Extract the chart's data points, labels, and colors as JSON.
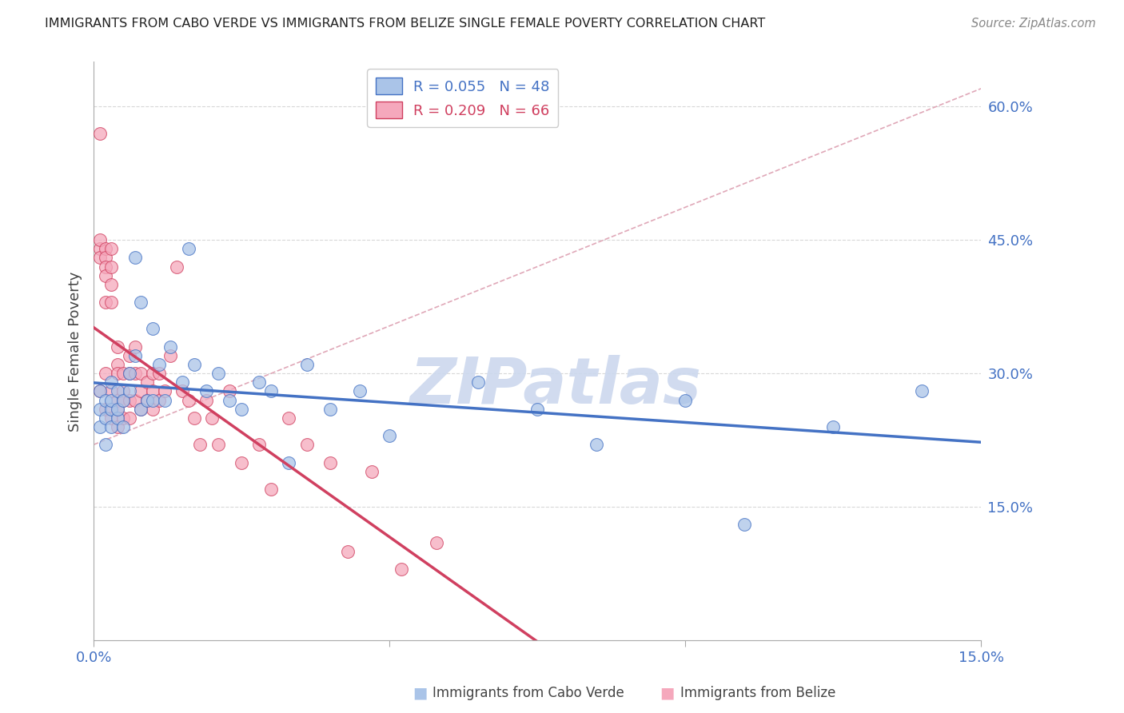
{
  "title": "IMMIGRANTS FROM CABO VERDE VS IMMIGRANTS FROM BELIZE SINGLE FEMALE POVERTY CORRELATION CHART",
  "source": "Source: ZipAtlas.com",
  "ylabel": "Single Female Poverty",
  "xmin": 0.0,
  "xmax": 0.15,
  "ymin": 0.0,
  "ymax": 0.65,
  "cabo_verde_R": 0.055,
  "cabo_verde_N": 48,
  "belize_R": 0.209,
  "belize_N": 66,
  "cabo_verde_color": "#aac4e8",
  "belize_color": "#f5a8bc",
  "cabo_verde_line_color": "#4472c4",
  "belize_line_color": "#d04060",
  "ref_line_color": "#e0a8b8",
  "watermark_color": "#ccd8ee",
  "grid_color": "#d8d8d8",
  "axis_label_color": "#4472c4",
  "cabo_verde_x": [
    0.001,
    0.001,
    0.001,
    0.002,
    0.002,
    0.002,
    0.003,
    0.003,
    0.003,
    0.003,
    0.004,
    0.004,
    0.004,
    0.005,
    0.005,
    0.006,
    0.006,
    0.007,
    0.007,
    0.008,
    0.008,
    0.009,
    0.01,
    0.01,
    0.011,
    0.012,
    0.013,
    0.015,
    0.016,
    0.017,
    0.019,
    0.021,
    0.023,
    0.025,
    0.028,
    0.03,
    0.033,
    0.036,
    0.04,
    0.045,
    0.05,
    0.065,
    0.075,
    0.085,
    0.1,
    0.11,
    0.125,
    0.14
  ],
  "cabo_verde_y": [
    0.26,
    0.24,
    0.28,
    0.25,
    0.27,
    0.22,
    0.29,
    0.26,
    0.24,
    0.27,
    0.25,
    0.28,
    0.26,
    0.27,
    0.24,
    0.3,
    0.28,
    0.43,
    0.32,
    0.26,
    0.38,
    0.27,
    0.35,
    0.27,
    0.31,
    0.27,
    0.33,
    0.29,
    0.44,
    0.31,
    0.28,
    0.3,
    0.27,
    0.26,
    0.29,
    0.28,
    0.2,
    0.31,
    0.26,
    0.28,
    0.23,
    0.29,
    0.26,
    0.22,
    0.27,
    0.13,
    0.24,
    0.28
  ],
  "belize_x": [
    0.001,
    0.001,
    0.001,
    0.001,
    0.001,
    0.002,
    0.002,
    0.002,
    0.002,
    0.002,
    0.002,
    0.002,
    0.003,
    0.003,
    0.003,
    0.003,
    0.003,
    0.003,
    0.004,
    0.004,
    0.004,
    0.004,
    0.004,
    0.004,
    0.005,
    0.005,
    0.005,
    0.005,
    0.006,
    0.006,
    0.006,
    0.006,
    0.007,
    0.007,
    0.007,
    0.008,
    0.008,
    0.008,
    0.009,
    0.009,
    0.01,
    0.01,
    0.01,
    0.011,
    0.011,
    0.012,
    0.013,
    0.014,
    0.015,
    0.016,
    0.017,
    0.018,
    0.019,
    0.02,
    0.021,
    0.023,
    0.025,
    0.028,
    0.03,
    0.033,
    0.036,
    0.04,
    0.043,
    0.047,
    0.052,
    0.058
  ],
  "belize_y": [
    0.57,
    0.44,
    0.45,
    0.43,
    0.28,
    0.44,
    0.43,
    0.42,
    0.41,
    0.38,
    0.3,
    0.26,
    0.4,
    0.42,
    0.44,
    0.38,
    0.28,
    0.25,
    0.33,
    0.31,
    0.3,
    0.27,
    0.26,
    0.24,
    0.3,
    0.28,
    0.27,
    0.25,
    0.32,
    0.3,
    0.27,
    0.25,
    0.33,
    0.3,
    0.27,
    0.3,
    0.28,
    0.26,
    0.29,
    0.27,
    0.3,
    0.28,
    0.26,
    0.3,
    0.27,
    0.28,
    0.32,
    0.42,
    0.28,
    0.27,
    0.25,
    0.22,
    0.27,
    0.25,
    0.22,
    0.28,
    0.2,
    0.22,
    0.17,
    0.25,
    0.22,
    0.2,
    0.1,
    0.19,
    0.08,
    0.11
  ]
}
